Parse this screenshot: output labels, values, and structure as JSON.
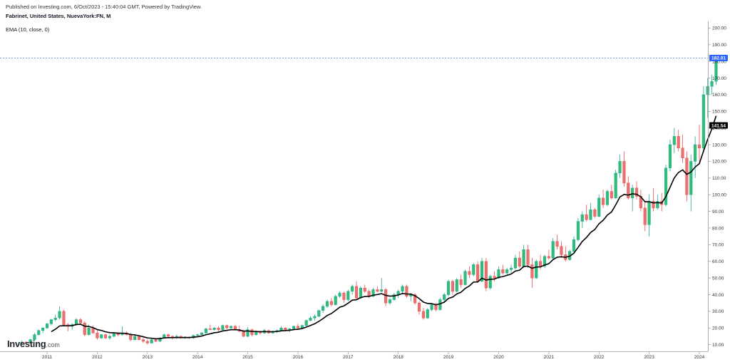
{
  "header": {
    "published": "Published on Investing.com, 6/Oct/2023 - 15:40:04 GMT, Powered by TradingView.",
    "symbol": "Fabrinet, United States, NuevaYork:FN, M",
    "indicator": "EMA (10, close, 0)"
  },
  "logo": {
    "brand": "Investing",
    "domain": ".com"
  },
  "chart_data": {
    "type": "candlestick",
    "interval": "monthly",
    "x_ticks": [
      "2011",
      "2012",
      "2013",
      "2014",
      "2015",
      "2016",
      "2017",
      "2018",
      "2019",
      "2020",
      "2021",
      "2022",
      "2023",
      "2024"
    ],
    "y_ticks": [
      "10.00",
      "20.00",
      "30.00",
      "40.00",
      "50.00",
      "60.00",
      "70.00",
      "80.00",
      "90.00",
      "100.00",
      "110.00",
      "120.00",
      "130.00",
      "140.00",
      "150.00",
      "160.00",
      "170.00",
      "180.00",
      "190.00",
      "200.00"
    ],
    "ylim": [
      6,
      204
    ],
    "start": "2010-07",
    "last_price": "182.01",
    "ema_last": "141.54",
    "colors": {
      "up": "#26a69a",
      "up_fill": "#2fbf71",
      "down": "#ef5350",
      "down_fill": "#e57373",
      "ema": "#000000",
      "price_badge": "#2962ff",
      "ema_badge": "#000000"
    },
    "ohlc": [
      [
        11,
        12.5,
        10.5,
        11.5
      ],
      [
        11.5,
        12,
        10.5,
        11
      ],
      [
        11,
        13.5,
        10.5,
        13
      ],
      [
        13,
        17,
        12.5,
        16
      ],
      [
        16,
        19,
        15.5,
        18.5
      ],
      [
        18.5,
        20.5,
        17,
        20
      ],
      [
        20,
        23,
        19.5,
        22.5
      ],
      [
        22.5,
        25.5,
        21.5,
        25
      ],
      [
        25,
        28,
        24,
        26
      ],
      [
        26,
        33,
        25,
        30
      ],
      [
        30,
        31,
        21,
        22
      ],
      [
        22,
        23,
        18,
        21
      ],
      [
        21,
        23,
        19,
        22
      ],
      [
        22,
        26,
        21.5,
        25
      ],
      [
        25,
        26,
        22,
        23
      ],
      [
        23,
        24,
        15,
        16
      ],
      [
        16,
        22,
        15.5,
        20
      ],
      [
        20,
        21.5,
        16.5,
        17
      ],
      [
        17,
        19,
        13,
        14
      ],
      [
        14,
        16.5,
        13.5,
        16
      ],
      [
        16,
        16.5,
        13.5,
        14
      ],
      [
        14,
        16,
        13,
        15
      ],
      [
        15,
        17.5,
        14.5,
        16.5
      ],
      [
        16.5,
        17.5,
        15,
        16
      ],
      [
        16,
        21,
        15.5,
        17
      ],
      [
        17,
        18,
        15.5,
        16
      ],
      [
        16,
        17,
        12,
        13
      ],
      [
        13,
        15.5,
        12.5,
        15
      ],
      [
        15,
        15.5,
        12.5,
        13
      ],
      [
        13,
        14,
        11,
        12
      ],
      [
        12,
        13,
        10,
        11
      ],
      [
        11,
        13.5,
        10.5,
        13
      ],
      [
        13,
        14,
        11.5,
        12
      ],
      [
        12,
        14.5,
        11.5,
        14
      ],
      [
        14,
        16.5,
        13.5,
        16
      ],
      [
        16,
        16.5,
        14,
        15
      ],
      [
        15,
        15.5,
        13,
        14
      ],
      [
        14,
        16,
        13.5,
        15
      ],
      [
        15,
        15.5,
        13.5,
        14
      ],
      [
        14,
        15,
        13.5,
        14.5
      ],
      [
        14.5,
        15,
        13.5,
        14
      ],
      [
        14,
        16,
        13.5,
        15.5
      ],
      [
        15.5,
        16.5,
        14.5,
        16
      ],
      [
        16,
        17.5,
        15.5,
        17
      ],
      [
        17,
        20,
        16.5,
        19.5
      ],
      [
        19.5,
        22,
        19,
        19
      ],
      [
        19,
        20.5,
        18.5,
        20
      ],
      [
        20,
        21,
        18,
        19
      ],
      [
        19,
        22,
        18.5,
        21.5
      ],
      [
        21.5,
        22,
        19,
        20
      ],
      [
        20,
        21.5,
        19,
        21
      ],
      [
        21,
        22,
        18.5,
        19
      ],
      [
        19,
        21.5,
        17.5,
        18
      ],
      [
        18,
        19,
        14.5,
        15
      ],
      [
        15,
        20.5,
        14.5,
        19
      ],
      [
        19,
        19.5,
        15,
        16
      ],
      [
        16,
        18.5,
        15.5,
        18
      ],
      [
        18,
        18.5,
        16,
        17
      ],
      [
        17,
        19.5,
        16.5,
        18.5
      ],
      [
        18.5,
        19,
        16.5,
        17
      ],
      [
        17,
        18.5,
        16.5,
        18
      ],
      [
        18,
        19,
        17,
        18.5
      ],
      [
        18.5,
        21,
        18,
        20
      ],
      [
        20,
        20.5,
        18,
        19
      ],
      [
        19,
        20,
        17.5,
        19.5
      ],
      [
        19.5,
        21.5,
        18.5,
        21
      ],
      [
        21,
        22.5,
        19.5,
        20
      ],
      [
        20,
        22,
        19.5,
        21.5
      ],
      [
        21.5,
        25,
        21,
        24.5
      ],
      [
        24.5,
        27,
        24,
        26
      ],
      [
        26,
        28,
        24.5,
        27
      ],
      [
        27,
        31,
        26.5,
        30.5
      ],
      [
        30.5,
        34,
        29,
        33
      ],
      [
        33,
        37,
        32,
        36
      ],
      [
        36,
        38,
        33,
        34
      ],
      [
        34,
        40,
        33.5,
        39
      ],
      [
        39,
        42,
        38,
        41
      ],
      [
        41,
        42,
        35,
        37
      ],
      [
        37,
        43,
        36,
        42
      ],
      [
        42,
        46,
        40,
        45
      ],
      [
        45,
        48,
        37,
        38
      ],
      [
        38,
        45,
        37.5,
        44
      ],
      [
        44,
        46,
        41,
        42
      ],
      [
        42,
        43,
        38,
        39
      ],
      [
        39,
        44,
        38.5,
        43
      ],
      [
        43,
        45,
        41.5,
        42
      ],
      [
        42,
        50,
        41.5,
        43
      ],
      [
        43,
        44,
        33,
        35
      ],
      [
        35,
        38,
        34,
        37
      ],
      [
        37,
        41,
        36.5,
        40
      ],
      [
        40,
        43,
        38,
        42
      ],
      [
        42,
        46,
        40,
        45
      ],
      [
        45,
        46,
        38,
        39
      ],
      [
        39,
        41,
        36,
        40
      ],
      [
        40,
        41,
        34,
        35
      ],
      [
        35,
        36,
        28,
        30
      ],
      [
        30,
        32,
        25,
        26
      ],
      [
        26,
        32,
        25.5,
        31
      ],
      [
        31,
        35,
        30,
        34
      ],
      [
        34,
        35,
        30,
        31
      ],
      [
        31,
        38,
        30.5,
        37
      ],
      [
        37,
        41,
        35,
        40
      ],
      [
        40,
        49,
        39,
        48
      ],
      [
        48,
        49,
        40,
        42
      ],
      [
        42,
        50,
        41.5,
        49
      ],
      [
        49,
        52,
        44,
        46
      ],
      [
        46,
        55,
        45.5,
        54
      ],
      [
        54,
        57,
        50,
        52
      ],
      [
        52,
        59,
        51,
        58
      ],
      [
        58,
        60,
        47,
        48
      ],
      [
        48,
        62,
        47.5,
        60
      ],
      [
        60,
        62,
        42,
        44
      ],
      [
        44,
        52,
        43,
        51
      ],
      [
        51,
        54,
        48,
        50
      ],
      [
        50,
        57,
        49.5,
        55
      ],
      [
        55,
        58,
        52,
        53
      ],
      [
        53,
        56,
        52,
        55
      ],
      [
        55,
        58,
        53,
        56
      ],
      [
        56,
        64,
        55,
        62
      ],
      [
        62,
        66,
        56,
        57
      ],
      [
        57,
        70,
        56,
        67
      ],
      [
        67,
        70,
        56,
        58
      ],
      [
        58,
        62,
        44,
        50
      ],
      [
        50,
        61,
        49.5,
        60
      ],
      [
        60,
        64,
        55,
        57
      ],
      [
        57,
        64,
        56,
        63
      ],
      [
        63,
        67,
        61,
        62
      ],
      [
        62,
        74,
        61,
        72
      ],
      [
        72,
        76,
        67,
        69
      ],
      [
        69,
        72,
        62,
        64
      ],
      [
        64,
        69,
        60,
        61
      ],
      [
        61,
        67,
        60.5,
        66
      ],
      [
        66,
        75,
        65,
        73
      ],
      [
        73,
        86,
        72,
        84
      ],
      [
        84,
        90,
        80,
        88
      ],
      [
        88,
        94,
        84,
        85
      ],
      [
        85,
        95,
        84.5,
        91
      ],
      [
        91,
        92,
        86,
        87
      ],
      [
        87,
        100,
        86.5,
        98
      ],
      [
        98,
        103,
        92,
        94
      ],
      [
        94,
        103,
        93,
        102
      ],
      [
        102,
        106,
        97,
        98
      ],
      [
        98,
        115,
        97.5,
        113
      ],
      [
        113,
        124,
        110,
        120
      ],
      [
        120,
        126,
        105,
        107
      ],
      [
        107,
        111,
        97,
        98
      ],
      [
        98,
        106,
        90,
        104
      ],
      [
        104,
        108,
        97,
        99
      ],
      [
        99,
        103,
        90,
        92
      ],
      [
        92,
        96,
        78,
        82
      ],
      [
        82,
        100,
        75,
        96
      ],
      [
        96,
        104,
        90,
        92
      ],
      [
        92,
        100,
        91,
        96
      ],
      [
        96,
        101,
        90,
        94
      ],
      [
        94,
        118,
        93,
        116
      ],
      [
        116,
        133,
        114,
        130
      ],
      [
        130,
        140,
        125,
        135
      ],
      [
        135,
        139,
        126,
        128
      ],
      [
        128,
        136,
        119,
        122
      ],
      [
        122,
        126,
        96,
        100
      ],
      [
        100,
        124,
        90,
        120
      ],
      [
        120,
        135,
        110,
        130
      ],
      [
        130,
        142,
        120,
        128
      ],
      [
        128,
        165,
        126,
        160
      ],
      [
        160,
        170,
        146,
        165
      ],
      [
        165,
        172,
        160,
        168
      ],
      [
        168,
        182.01,
        166,
        182.01
      ]
    ]
  }
}
